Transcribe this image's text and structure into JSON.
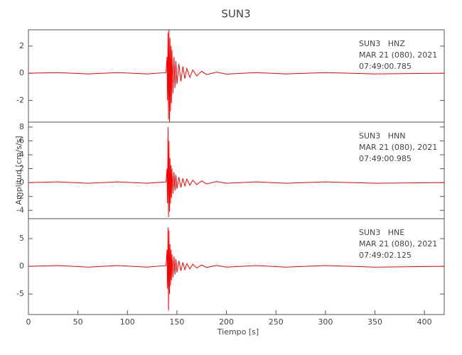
{
  "chart_data": [
    {
      "type": "line",
      "title": "SUN3",
      "color": "#ff0000",
      "annotations": [
        "SUN3   HNZ",
        "MAR 21 (080), 2021",
        "07:49:00.785"
      ],
      "x": [
        0,
        30,
        60,
        90,
        120,
        139,
        140,
        140.5,
        141,
        141.5,
        142,
        142.5,
        143,
        143.5,
        144,
        144.5,
        145,
        146,
        147,
        148,
        149,
        150,
        152,
        154,
        156,
        158,
        160,
        163,
        166,
        170,
        175,
        180,
        190,
        200,
        230,
        260,
        300,
        350,
        420
      ],
      "values": [
        0,
        0.05,
        -0.05,
        0.05,
        -0.05,
        0.05,
        1.2,
        -2.0,
        3.0,
        -3.4,
        3.2,
        -3.6,
        2.6,
        -2.8,
        2.0,
        -2.2,
        1.7,
        -1.5,
        1.2,
        -1.1,
        0.9,
        -0.8,
        0.7,
        -0.6,
        0.5,
        -0.4,
        0.35,
        -0.3,
        0.25,
        -0.2,
        0.15,
        -0.1,
        0.08,
        -0.06,
        0.05,
        -0.05,
        0.05,
        -0.05,
        0
      ],
      "xlim": [
        0,
        420
      ],
      "ylim": [
        -3.6,
        3.2
      ],
      "yticks": [
        -2,
        0,
        2
      ]
    },
    {
      "type": "line",
      "y_label": "Amplitud [cm/s/s]",
      "color": "#ff0000",
      "annotations": [
        "SUN3   HNN",
        "MAR 21 (080), 2021",
        "07:49:00.985"
      ],
      "x": [
        0,
        30,
        60,
        90,
        120,
        139,
        140,
        140.5,
        141,
        141.5,
        142,
        142.5,
        143,
        143.5,
        144,
        144.5,
        145,
        146,
        147,
        148,
        149,
        150,
        152,
        154,
        156,
        158,
        160,
        163,
        166,
        170,
        175,
        180,
        190,
        200,
        230,
        260,
        300,
        350,
        420
      ],
      "values": [
        0,
        0.1,
        -0.1,
        0.1,
        -0.1,
        0.1,
        2.0,
        -3.0,
        8.0,
        -5.0,
        6.0,
        -4.2,
        3.5,
        -3.0,
        2.5,
        -2.2,
        2.0,
        -1.6,
        1.5,
        -1.2,
        1.1,
        -0.9,
        0.8,
        -0.7,
        0.6,
        -0.5,
        0.5,
        -0.4,
        0.35,
        -0.3,
        0.25,
        -0.2,
        0.15,
        -0.1,
        0.1,
        -0.1,
        0.1,
        -0.1,
        0
      ],
      "xlim": [
        0,
        420
      ],
      "ylim": [
        -5.2,
        8.7
      ],
      "yticks": [
        -4,
        -2,
        0,
        2,
        4,
        6,
        8
      ]
    },
    {
      "type": "line",
      "x_label": "Tiempo [s]",
      "color": "#ff0000",
      "annotations": [
        "SUN3   HNE",
        "MAR 21 (080), 2021",
        "07:49:02.125"
      ],
      "x": [
        0,
        30,
        60,
        90,
        120,
        139,
        140,
        140.5,
        141,
        141.5,
        142,
        142.5,
        143,
        143.5,
        144,
        144.5,
        145,
        146,
        147,
        148,
        149,
        150,
        152,
        154,
        156,
        158,
        160,
        163,
        166,
        170,
        175,
        180,
        190,
        200,
        230,
        260,
        300,
        350,
        420
      ],
      "values": [
        0,
        0.15,
        -0.15,
        0.15,
        -0.15,
        0.15,
        3.0,
        -4.0,
        7.0,
        -8.0,
        6.5,
        -5.0,
        4.0,
        -3.5,
        3.0,
        -2.5,
        2.2,
        -2.0,
        1.8,
        -1.5,
        1.3,
        -1.1,
        1.0,
        -0.8,
        0.7,
        -0.6,
        0.5,
        -0.45,
        0.4,
        -0.3,
        0.25,
        -0.2,
        0.15,
        -0.15,
        0.15,
        -0.15,
        0.15,
        -0.15,
        0
      ],
      "xlim": [
        0,
        420
      ],
      "ylim": [
        -8.7,
        8.6
      ],
      "yticks": [
        -5,
        0,
        5
      ],
      "xticks": [
        0,
        50,
        100,
        150,
        200,
        250,
        300,
        350,
        400
      ]
    }
  ]
}
